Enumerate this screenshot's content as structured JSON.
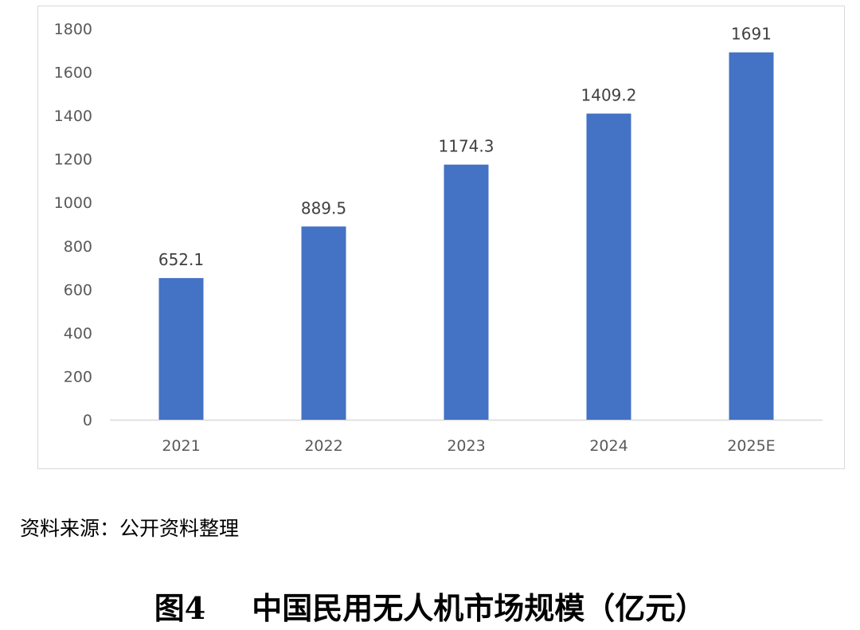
{
  "chart_data": {
    "type": "bar",
    "categories": [
      "2021",
      "2022",
      "2023",
      "2024",
      "2025E"
    ],
    "values": [
      652.1,
      889.5,
      1174.3,
      1409.2,
      1691
    ],
    "data_labels": [
      "652.1",
      "889.5",
      "1174.3",
      "1409.2",
      "1691"
    ],
    "ylim": [
      0,
      1800
    ],
    "yticks": [
      0,
      200,
      400,
      600,
      800,
      1000,
      1200,
      1400,
      1600,
      1800
    ],
    "grid": false,
    "legend": "none",
    "title": "",
    "xlabel": "",
    "ylabel": ""
  },
  "colors": {
    "bar": "#4472C4",
    "axis": "#d9d9d9",
    "tick_text": "#595959",
    "label_text": "#404040"
  },
  "source": {
    "text": "资料来源：公开资料整理"
  },
  "caption": {
    "number": "图4",
    "title": "中国民用无人机市场规模（亿元）"
  }
}
